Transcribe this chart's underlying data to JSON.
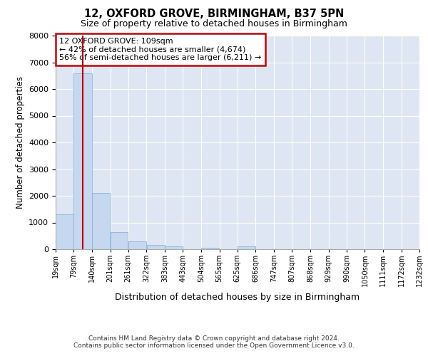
{
  "title1": "12, OXFORD GROVE, BIRMINGHAM, B37 5PN",
  "title2": "Size of property relative to detached houses in Birmingham",
  "xlabel": "Distribution of detached houses by size in Birmingham",
  "ylabel": "Number of detached properties",
  "footer1": "Contains HM Land Registry data © Crown copyright and database right 2024.",
  "footer2": "Contains public sector information licensed under the Open Government Licence v3.0.",
  "annotation_title": "12 OXFORD GROVE: 109sqm",
  "annotation_line1": "← 42% of detached houses are smaller (4,674)",
  "annotation_line2": "56% of semi-detached houses are larger (6,211) →",
  "property_size": 109,
  "bin_edges": [
    19,
    79,
    140,
    201,
    261,
    322,
    383,
    443,
    504,
    565,
    625,
    686,
    747,
    807,
    868,
    929,
    990,
    1050,
    1111,
    1172,
    1232
  ],
  "bin_labels": [
    "19sqm",
    "79sqm",
    "140sqm",
    "201sqm",
    "261sqm",
    "322sqm",
    "383sqm",
    "443sqm",
    "504sqm",
    "565sqm",
    "625sqm",
    "686sqm",
    "747sqm",
    "807sqm",
    "868sqm",
    "929sqm",
    "990sqm",
    "1050sqm",
    "1111sqm",
    "1172sqm",
    "1232sqm"
  ],
  "bar_heights": [
    1300,
    6600,
    2100,
    650,
    300,
    150,
    100,
    0,
    50,
    0,
    100,
    0,
    0,
    0,
    0,
    0,
    0,
    0,
    0,
    0
  ],
  "bar_color": "#c5d8ef",
  "bar_edge_color": "#7aaed6",
  "vline_color": "#cc0000",
  "annotation_box_edgecolor": "#cc0000",
  "background_color": "#dde6f2",
  "ylim": [
    0,
    8000
  ],
  "yticks": [
    0,
    1000,
    2000,
    3000,
    4000,
    5000,
    6000,
    7000,
    8000
  ]
}
